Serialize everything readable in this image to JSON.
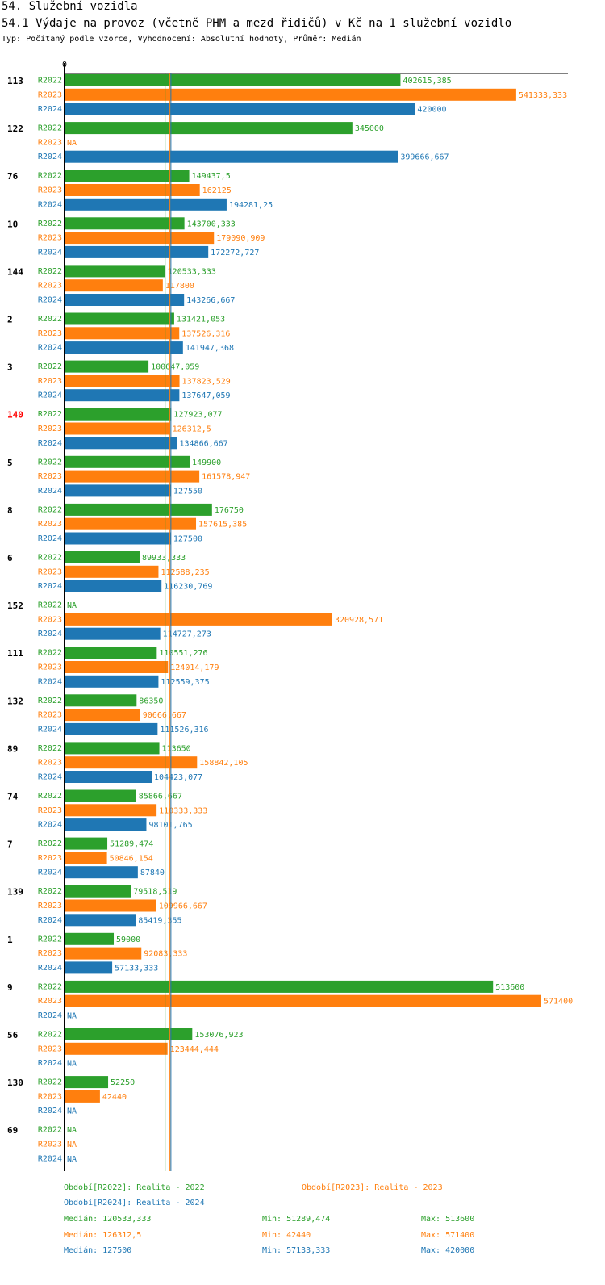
{
  "title": "54. Služební vozidla",
  "subtitle": "54.1 Výdaje na provoz (včetně PHM a mezd řidičů) v Kč na 1 služební vozidlo",
  "type_line": "Typ: Počítaný podle vzorce, Vyhodnocení: Absolutní hodnoty, Průměr: Medián",
  "colors": {
    "R2022": "#2ca02c",
    "R2023": "#ff7f0e",
    "R2024": "#1f77b4",
    "highlight": "#ff0000",
    "text": "#000000"
  },
  "chart_data": {
    "type": "bar",
    "orientation": "horizontal",
    "title": "54.1 Výdaje na provoz (včetně PHM a mezd řidičů) v Kč na 1 služební vozidlo",
    "zero_label": "0",
    "xlim": [
      0,
      571400
    ],
    "series": [
      {
        "name": "R2022",
        "label": "Období[R2022]: Realita - 2022",
        "color": "#2ca02c",
        "median": 120533.333,
        "median_text": "Medián: 120533,333",
        "min_text": "Min: 51289,474",
        "max_text": "Max: 513600"
      },
      {
        "name": "R2023",
        "label": "Období[R2023]: Realita - 2023",
        "color": "#ff7f0e",
        "median": 126312.5,
        "median_text": "Medián: 126312,5",
        "min_text": "Min: 42440",
        "max_text": "Max: 571400"
      },
      {
        "name": "R2024",
        "label": "Období[R2024]: Realita - 2024",
        "color": "#1f77b4",
        "median": 127500,
        "median_text": "Medián: 127500",
        "min_text": "Min: 57133,333",
        "max_text": "Max: 420000"
      }
    ],
    "categories": [
      {
        "name": "113",
        "values": [
          [
            402615.385,
            "402615,385"
          ],
          [
            541333.333,
            "541333,333"
          ],
          [
            420000,
            "420000"
          ]
        ]
      },
      {
        "name": "122",
        "values": [
          [
            345000,
            "345000"
          ],
          [
            null,
            "NA"
          ],
          [
            399666.667,
            "399666,667"
          ]
        ]
      },
      {
        "name": "76",
        "values": [
          [
            149437.5,
            "149437,5"
          ],
          [
            162125,
            "162125"
          ],
          [
            194281.25,
            "194281,25"
          ]
        ]
      },
      {
        "name": "10",
        "values": [
          [
            143700.333,
            "143700,333"
          ],
          [
            179090.909,
            "179090,909"
          ],
          [
            172272.727,
            "172272,727"
          ]
        ]
      },
      {
        "name": "144",
        "values": [
          [
            120533.333,
            "120533,333"
          ],
          [
            117800,
            "117800"
          ],
          [
            143266.667,
            "143266,667"
          ]
        ]
      },
      {
        "name": "2",
        "values": [
          [
            131421.053,
            "131421,053"
          ],
          [
            137526.316,
            "137526,316"
          ],
          [
            141947.368,
            "141947,368"
          ]
        ]
      },
      {
        "name": "3",
        "values": [
          [
            100647.059,
            "100647,059"
          ],
          [
            137823.529,
            "137823,529"
          ],
          [
            137647.059,
            "137647,059"
          ]
        ]
      },
      {
        "name": "140",
        "highlight": true,
        "values": [
          [
            127923.077,
            "127923,077"
          ],
          [
            126312.5,
            "126312,5"
          ],
          [
            134866.667,
            "134866,667"
          ]
        ]
      },
      {
        "name": "5",
        "values": [
          [
            149900,
            "149900"
          ],
          [
            161578.947,
            "161578,947"
          ],
          [
            127550,
            "127550"
          ]
        ]
      },
      {
        "name": "8",
        "values": [
          [
            176750,
            "176750"
          ],
          [
            157615.385,
            "157615,385"
          ],
          [
            127500,
            "127500"
          ]
        ]
      },
      {
        "name": "6",
        "values": [
          [
            89933.333,
            "89933,333"
          ],
          [
            112588.235,
            "112588,235"
          ],
          [
            116230.769,
            "116230,769"
          ]
        ]
      },
      {
        "name": "152",
        "values": [
          [
            null,
            "NA"
          ],
          [
            320928.571,
            "320928,571"
          ],
          [
            114727.273,
            "114727,273"
          ]
        ]
      },
      {
        "name": "111",
        "values": [
          [
            110551.276,
            "110551,276"
          ],
          [
            124014.179,
            "124014,179"
          ],
          [
            112559.375,
            "112559,375"
          ]
        ]
      },
      {
        "name": "132",
        "values": [
          [
            86350,
            "86350"
          ],
          [
            90666.667,
            "90666,667"
          ],
          [
            111526.316,
            "111526,316"
          ]
        ]
      },
      {
        "name": "89",
        "values": [
          [
            113650,
            "113650"
          ],
          [
            158842.105,
            "158842,105"
          ],
          [
            104423.077,
            "104423,077"
          ]
        ]
      },
      {
        "name": "74",
        "values": [
          [
            85866.667,
            "85866,667"
          ],
          [
            110333.333,
            "110333,333"
          ],
          [
            98101.765,
            "98101,765"
          ]
        ]
      },
      {
        "name": "7",
        "values": [
          [
            51289.474,
            "51289,474"
          ],
          [
            50846.154,
            "50846,154"
          ],
          [
            87840,
            "87840"
          ]
        ]
      },
      {
        "name": "139",
        "values": [
          [
            79518.519,
            "79518,519"
          ],
          [
            109966.667,
            "109966,667"
          ],
          [
            85419.355,
            "85419,355"
          ]
        ]
      },
      {
        "name": "1",
        "values": [
          [
            59000,
            "59000"
          ],
          [
            92083.333,
            "92083,333"
          ],
          [
            57133.333,
            "57133,333"
          ]
        ]
      },
      {
        "name": "9",
        "values": [
          [
            513600,
            "513600"
          ],
          [
            571400,
            "571400"
          ],
          [
            null,
            "NA"
          ]
        ]
      },
      {
        "name": "56",
        "values": [
          [
            153076.923,
            "153076,923"
          ],
          [
            123444.444,
            "123444,444"
          ],
          [
            null,
            "NA"
          ]
        ]
      },
      {
        "name": "130",
        "values": [
          [
            52250,
            "52250"
          ],
          [
            42440,
            "42440"
          ],
          [
            null,
            "NA"
          ]
        ]
      },
      {
        "name": "69",
        "values": [
          [
            null,
            "NA"
          ],
          [
            null,
            "NA"
          ],
          [
            null,
            "NA"
          ]
        ]
      }
    ]
  }
}
